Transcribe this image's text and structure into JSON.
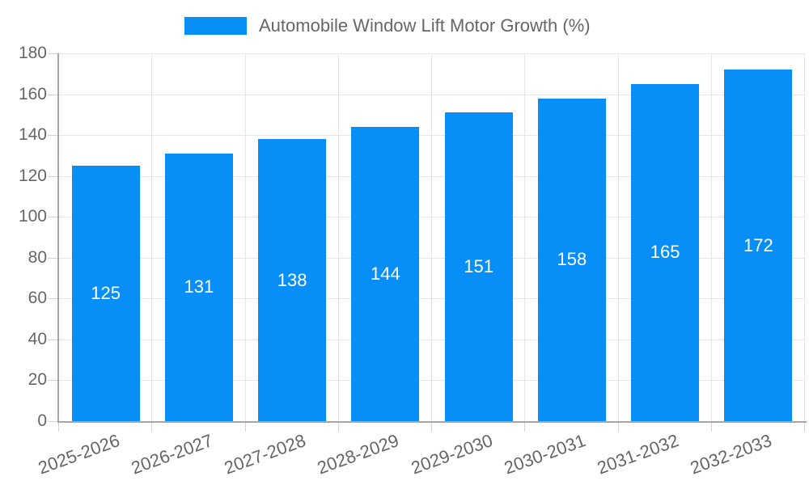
{
  "legend": {
    "label": "Automobile Window Lift Motor Growth (%)"
  },
  "colors": {
    "bar": "#088ff7",
    "grid": "#e6e6e6",
    "tick": "#d2d2d2",
    "axis": "#a6a6a6",
    "text": "#666666",
    "value_label": "#ffffff"
  },
  "chart_data": {
    "type": "bar",
    "title": "Automobile Window Lift Motor Growth (%)",
    "categories": [
      "2025-2026",
      "2026-2027",
      "2027-2028",
      "2028-2029",
      "2029-2030",
      "2030-2031",
      "2031-2032",
      "2032-2033"
    ],
    "values": [
      125,
      131,
      138,
      144,
      151,
      158,
      165,
      172
    ],
    "xlabel": "",
    "ylabel": "",
    "ylim": [
      0,
      180
    ],
    "ytick_step": 20,
    "grid": "on",
    "legend_position": "top",
    "value_labels": "inside-center",
    "x_label_rotation_deg": -20
  }
}
